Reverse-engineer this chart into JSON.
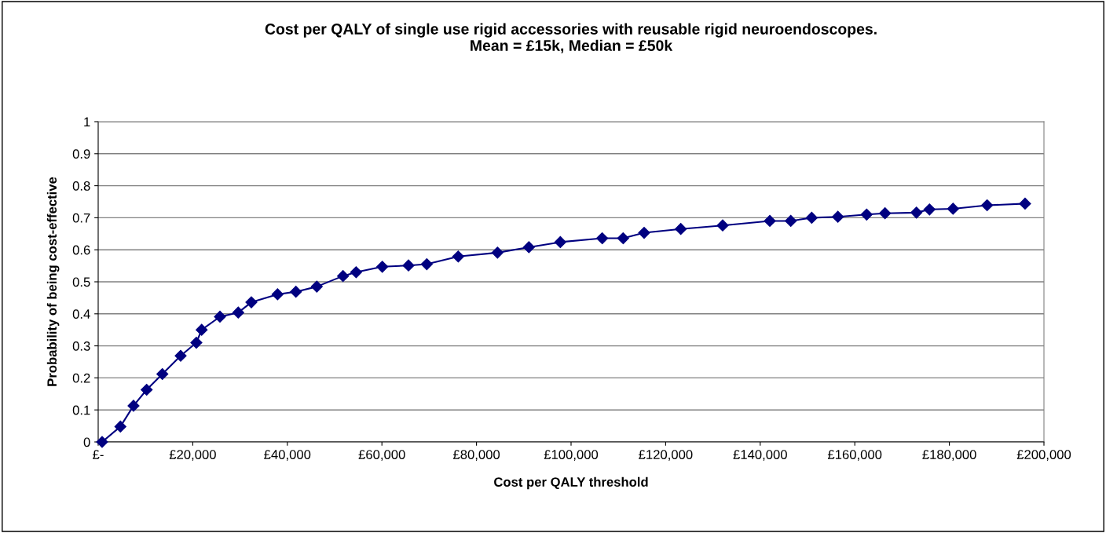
{
  "chart_data": {
    "type": "line",
    "title": "Cost per QALY of single use rigid accessories with reusable rigid neuroendoscopes.\nMean = £15k, Median = £50k",
    "xlabel": "Cost per QALY threshold",
    "ylabel": "Probability of being cost-effective",
    "xlim": [
      0,
      200000
    ],
    "ylim": [
      0,
      1
    ],
    "xticks": [
      {
        "value": 0,
        "label": "£-"
      },
      {
        "value": 20000,
        "label": "£20,000"
      },
      {
        "value": 40000,
        "label": "£40,000"
      },
      {
        "value": 60000,
        "label": "£60,000"
      },
      {
        "value": 80000,
        "label": "£80,000"
      },
      {
        "value": 100000,
        "label": "£100,000"
      },
      {
        "value": 120000,
        "label": "£120,000"
      },
      {
        "value": 140000,
        "label": "£140,000"
      },
      {
        "value": 160000,
        "label": "£160,000"
      },
      {
        "value": 180000,
        "label": "£180,000"
      },
      {
        "value": 200000,
        "label": "£200,000"
      }
    ],
    "yticks": [
      0,
      0.1,
      0.2,
      0.3,
      0.4,
      0.5,
      0.6,
      0.7,
      0.8,
      0.9,
      1
    ],
    "grid": "y",
    "marker": "diamond",
    "line_style": "solid",
    "series": [
      {
        "color": "#000080",
        "x": [
          830,
          4700,
          7470,
          10250,
          13570,
          17440,
          20760,
          21880,
          25750,
          29620,
          32390,
          37930,
          41810,
          46230,
          51770,
          54540,
          60080,
          65620,
          69490,
          76130,
          84440,
          91080,
          97730,
          106580,
          111010,
          115450,
          123200,
          132060,
          142030,
          146460,
          150890,
          156420,
          162510,
          166390,
          173040,
          175800,
          180780,
          187980,
          196010
        ],
        "values": [
          0.0,
          0.048,
          0.113,
          0.163,
          0.212,
          0.269,
          0.31,
          0.35,
          0.391,
          0.404,
          0.436,
          0.461,
          0.469,
          0.485,
          0.518,
          0.53,
          0.547,
          0.551,
          0.555,
          0.579,
          0.591,
          0.608,
          0.624,
          0.636,
          0.636,
          0.653,
          0.665,
          0.676,
          0.69,
          0.69,
          0.7,
          0.703,
          0.71,
          0.714,
          0.716,
          0.726,
          0.728,
          0.739,
          0.744
        ]
      }
    ]
  }
}
